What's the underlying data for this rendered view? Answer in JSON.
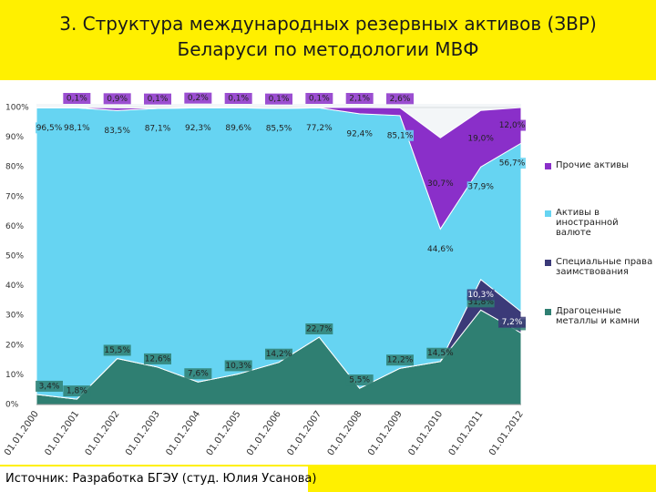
{
  "chart_data": {
    "type": "stacked_area",
    "title": [
      "3. Структура международных резервных активов (ЗВР)",
      "Беларуси по методологии МВФ"
    ],
    "categories": [
      "01.01.2000",
      "01.01.2001",
      "01.01.2002",
      "01.01.2003",
      "01.01.2004",
      "01.01.2005",
      "01.01.2006",
      "01.01.2007",
      "01.01.2008",
      "01.01.2009",
      "01.01.2010",
      "01.01.2011",
      "01.01.2012"
    ],
    "ylim": [
      0,
      100
    ],
    "yticks": [
      {
        "value": 0,
        "label": "0%"
      },
      {
        "value": 10,
        "label": "10%"
      },
      {
        "value": 20,
        "label": "20%"
      },
      {
        "value": 30,
        "label": "30%"
      },
      {
        "value": 40,
        "label": "40%"
      },
      {
        "value": 50,
        "label": "50%"
      },
      {
        "value": 60,
        "label": "60%"
      },
      {
        "value": 70,
        "label": "70%"
      },
      {
        "value": 80,
        "label": "80%"
      },
      {
        "value": 90,
        "label": "90%"
      },
      {
        "value": 100,
        "label": "100%"
      }
    ],
    "series": [
      {
        "name": "Драгоценные металлы и камни",
        "color": "#2f7f72",
        "values": [
          3.4,
          1.8,
          15.5,
          12.6,
          7.6,
          10.3,
          14.2,
          22.7,
          5.5,
          12.2,
          14.5,
          31.8,
          24.1
        ],
        "value_labels": [
          "3,4%",
          "1,8%",
          "15,5%",
          "12,6%",
          "7,6%",
          "10,3%",
          "14,2%",
          "22,7%",
          "5,5%",
          "12,2%",
          "14,5%",
          "31,8%",
          "24,1%"
        ]
      },
      {
        "name": "Специальные права заимствования",
        "color": "#3b3a78",
        "values": [
          0,
          0,
          0,
          0,
          0,
          0,
          0,
          0,
          0,
          0,
          0,
          10.3,
          7.2
        ],
        "value_labels": [
          null,
          null,
          null,
          null,
          null,
          null,
          null,
          null,
          null,
          null,
          null,
          "10,3%",
          "7,2%"
        ]
      },
      {
        "name": "Активы в иностранной валюте",
        "color": "#66d4f2",
        "values": [
          96.5,
          98.1,
          83.5,
          87.1,
          92.3,
          89.6,
          85.5,
          77.2,
          92.4,
          85.1,
          44.6,
          37.9,
          56.7
        ],
        "value_labels": [
          "96,5%",
          "98,1%",
          "83,5%",
          "87,1%",
          "92,3%",
          "89,6%",
          "85,5%",
          "77,2%",
          "92,4%",
          "85,1%",
          "44,6%",
          "37,9%",
          "56,7%"
        ]
      },
      {
        "name": "Прочие активы",
        "color": "#8a2fc9",
        "values": [
          0.1,
          0.1,
          0.9,
          0.1,
          0.2,
          0.1,
          0.1,
          0.1,
          2.1,
          2.6,
          30.7,
          19.0,
          12.0
        ],
        "value_labels": [
          null,
          "0,1%",
          "0,9%",
          "0,1%",
          "0,2%",
          "0,1%",
          "0,1%",
          "0,1%",
          "2,1%",
          "2,6%",
          "30,7%",
          "19,0%",
          "12,0%"
        ]
      }
    ],
    "legend": "right",
    "source": "Источник: Разработка БГЭУ (студ. Юлия Усанова)"
  }
}
